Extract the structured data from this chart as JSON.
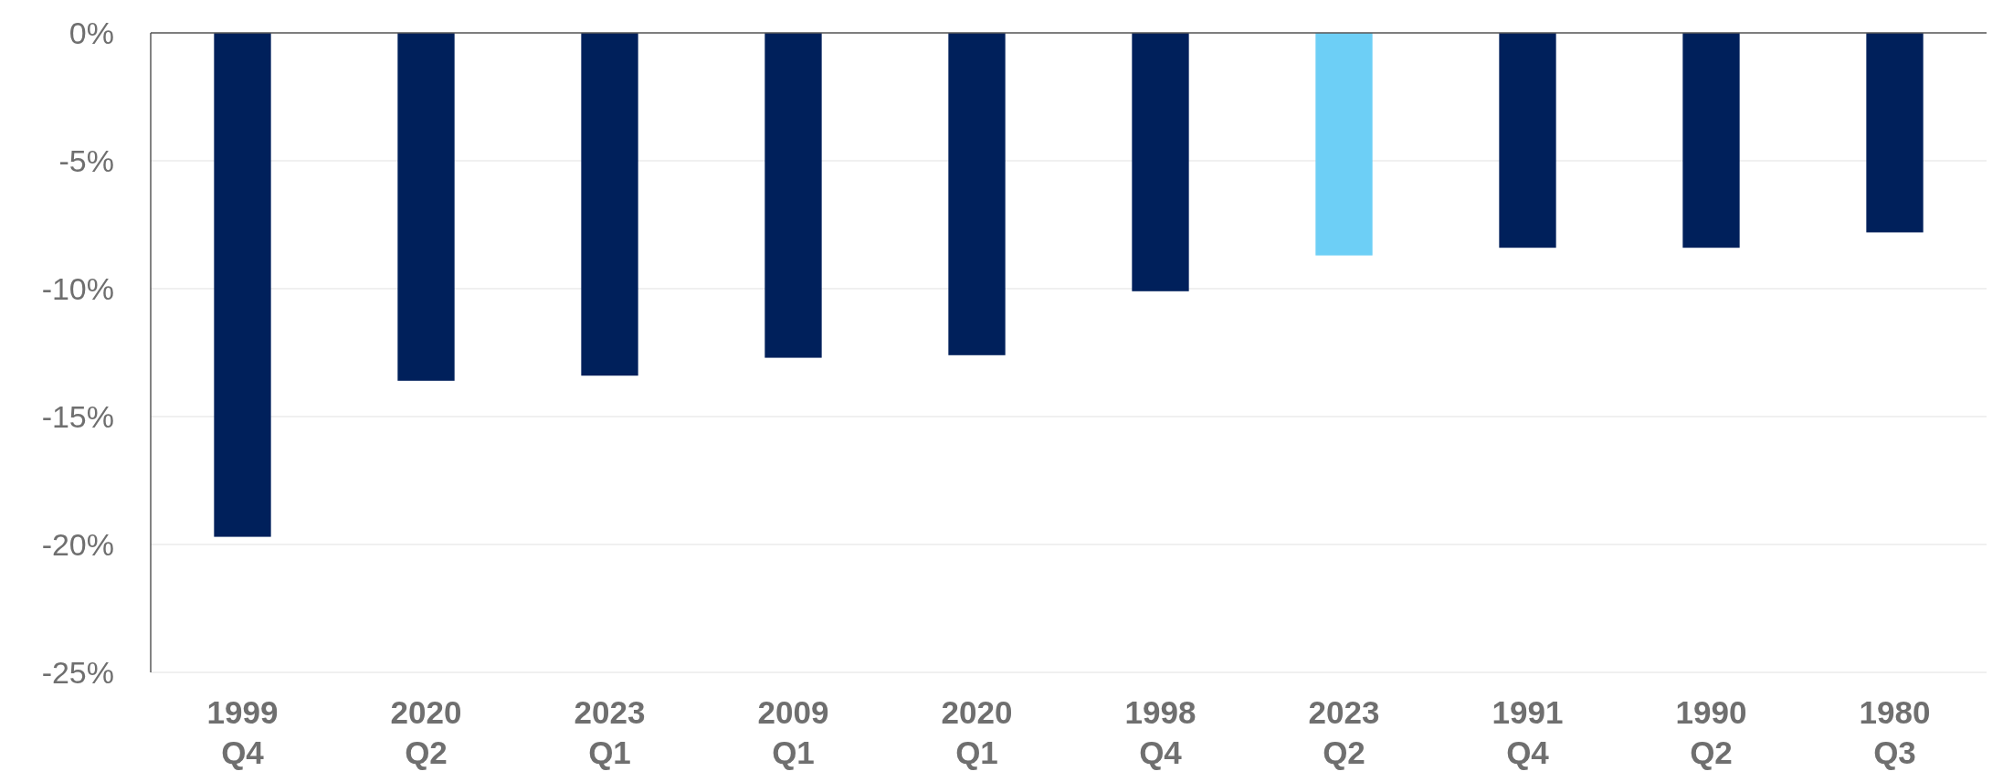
{
  "chart_data": {
    "type": "bar",
    "categories": [
      "1999 Q4",
      "2020 Q2",
      "2023 Q1",
      "2009 Q1",
      "2020 Q1",
      "1998 Q4",
      "2023 Q2",
      "1991 Q4",
      "1990 Q2",
      "1980 Q3"
    ],
    "values": [
      -19.7,
      -13.6,
      -13.4,
      -12.7,
      -12.6,
      -10.1,
      -8.7,
      -8.4,
      -8.4,
      -7.8
    ],
    "colors": [
      "#00205b",
      "#00205b",
      "#00205b",
      "#00205b",
      "#00205b",
      "#00205b",
      "#6dcff6",
      "#00205b",
      "#00205b",
      "#00205b"
    ],
    "ylim": [
      -25,
      0
    ],
    "yticks": [
      {
        "value": 0,
        "label": "0%"
      },
      {
        "value": -5,
        "label": "-5%"
      },
      {
        "value": -10,
        "label": "-10%"
      },
      {
        "value": -15,
        "label": "-15%"
      },
      {
        "value": -20,
        "label": "-20%"
      },
      {
        "value": -25,
        "label": "-25%"
      }
    ],
    "grid": "y"
  }
}
